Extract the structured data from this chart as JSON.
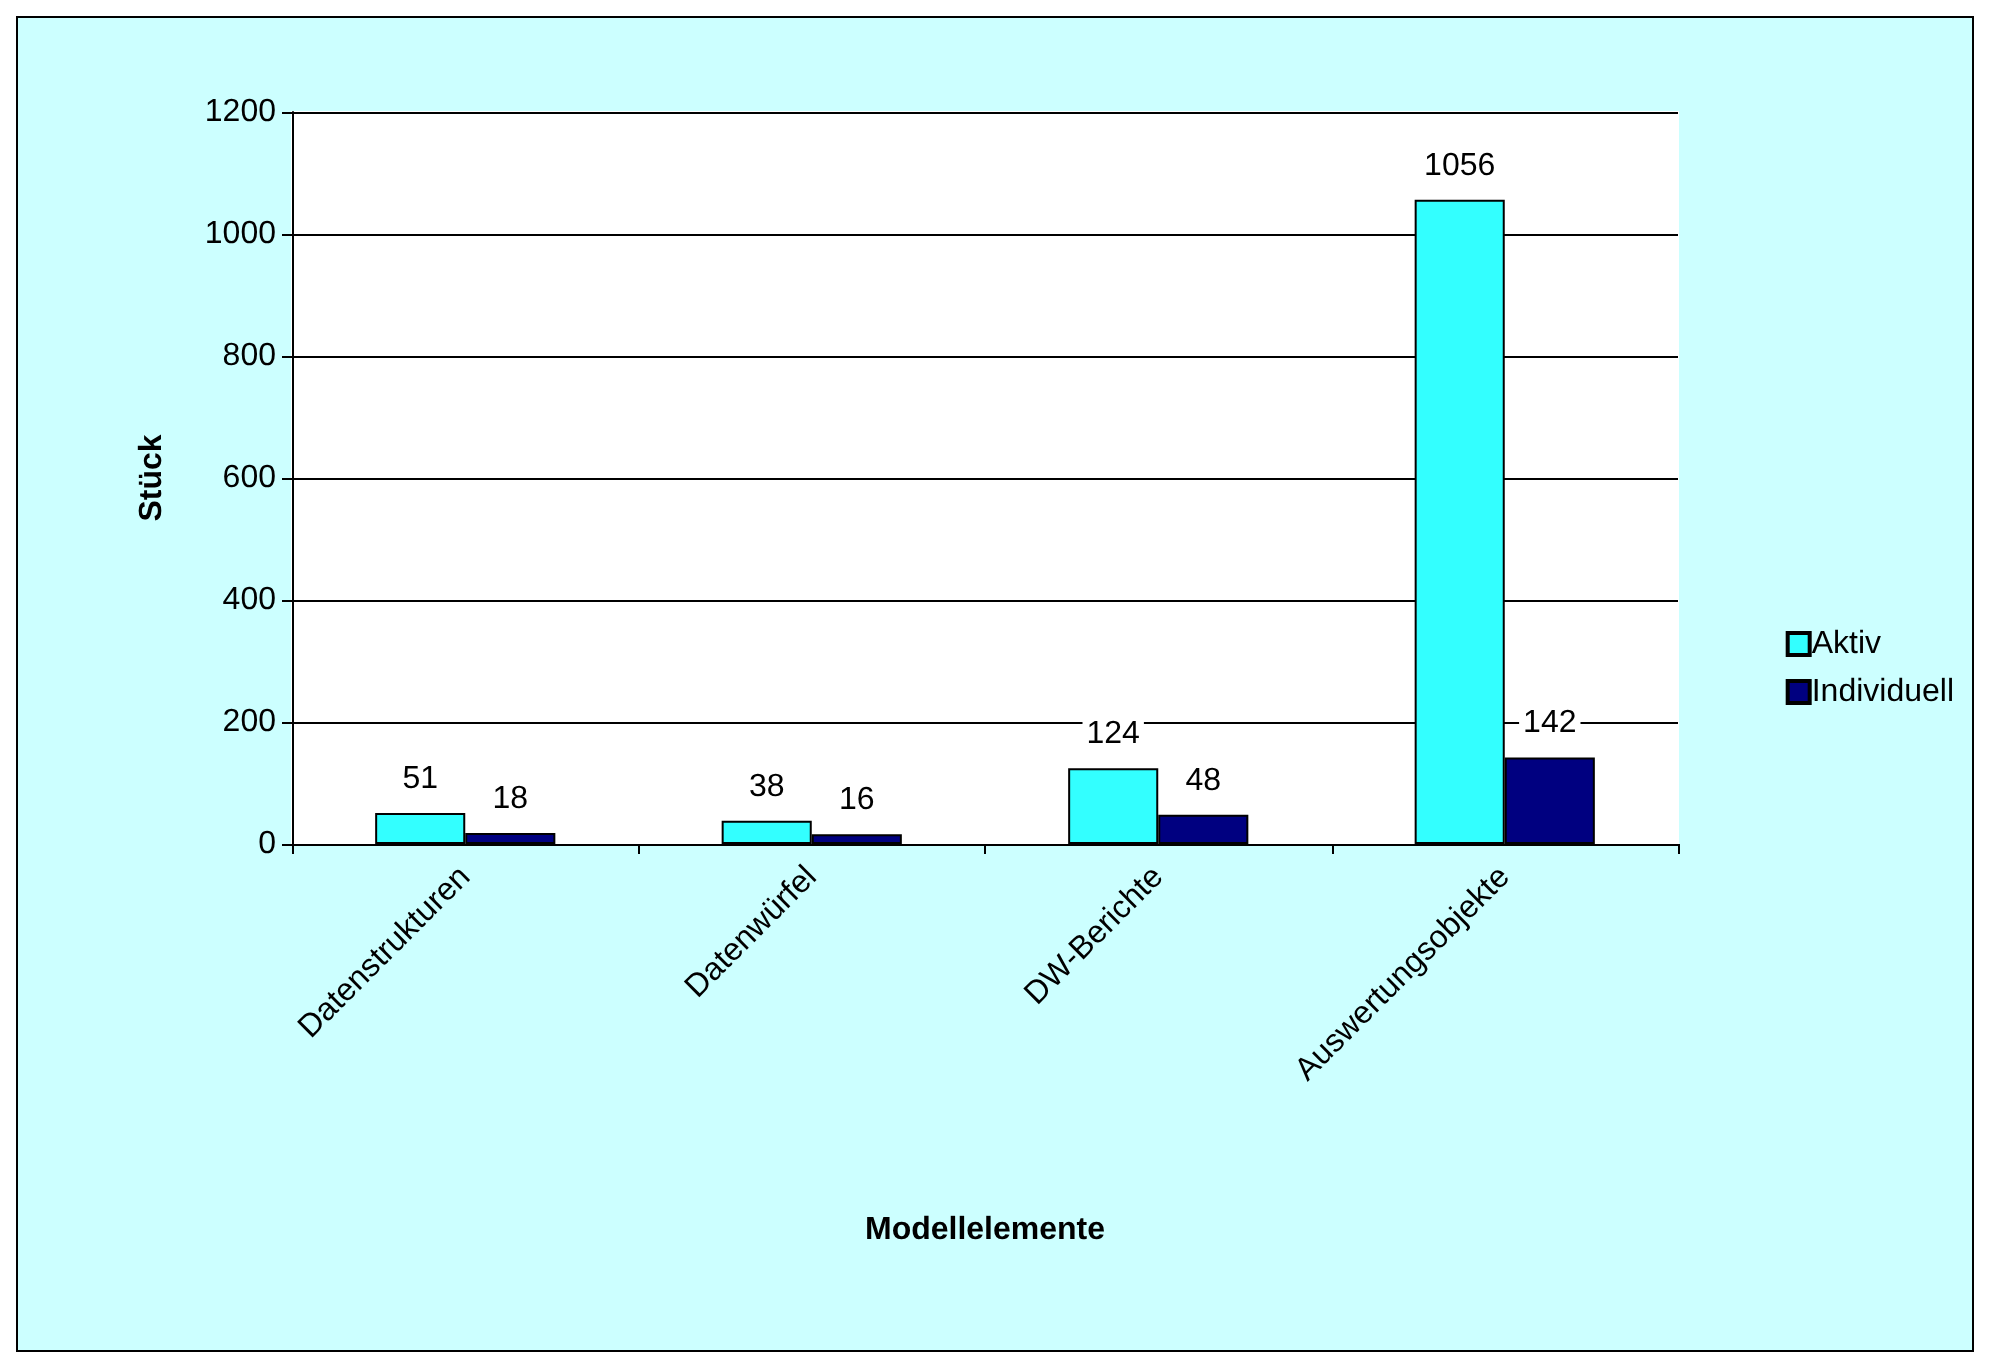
{
  "chart_data": {
    "type": "bar",
    "xlabel": "Modellelemente",
    "ylabel": "Stück",
    "categories": [
      "Datenstrukturen",
      "Datenwürfel",
      "DW-Berichte",
      "Auswertungsobjekte"
    ],
    "series": [
      {
        "name": "Aktiv",
        "color": "#33ffff",
        "values": [
          51,
          38,
          124,
          1056
        ]
      },
      {
        "name": "Individuell",
        "color": "#000080",
        "values": [
          18,
          16,
          48,
          142
        ]
      }
    ],
    "ylim": [
      0,
      1200
    ],
    "yticks": [
      0,
      200,
      400,
      600,
      800,
      1000,
      1200
    ],
    "grid": "y",
    "legend": "right",
    "data_labels": true
  }
}
